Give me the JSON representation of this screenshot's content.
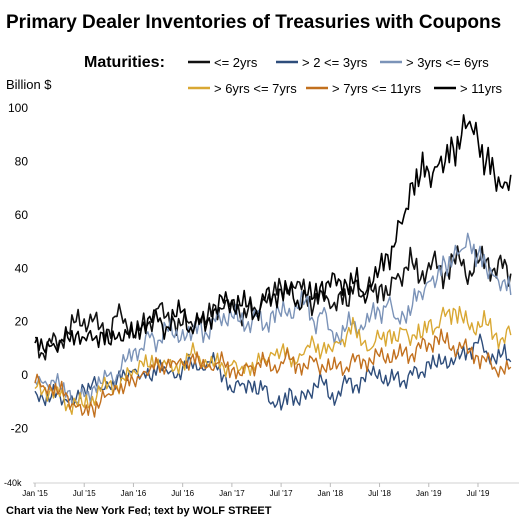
{
  "chart_data": {
    "type": "line",
    "title": "Primary Dealer Inventories of Treasuries with Coupons",
    "legend_title": "Maturities:",
    "ylabel": "Billion $",
    "ylim": [
      -40,
      100
    ],
    "yticks": [
      {
        "value": 100,
        "label": "100"
      },
      {
        "value": 80,
        "label": "80"
      },
      {
        "value": 60,
        "label": "60"
      },
      {
        "value": 40,
        "label": "40"
      },
      {
        "value": 20,
        "label": "20"
      },
      {
        "value": 0,
        "label": "0"
      },
      {
        "value": -20,
        "label": "-20"
      },
      {
        "value": -40,
        "label": "-40k"
      }
    ],
    "xlim": [
      "2015-01",
      "2019-12"
    ],
    "xticks": [
      {
        "date": "2015-01",
        "label": "Jan '15"
      },
      {
        "date": "2015-07",
        "label": "Jul '15"
      },
      {
        "date": "2016-01",
        "label": "Jan '16"
      },
      {
        "date": "2016-07",
        "label": "Jul '16"
      },
      {
        "date": "2017-01",
        "label": "Jan '17"
      },
      {
        "date": "2017-07",
        "label": "Jul '17"
      },
      {
        "date": "2018-01",
        "label": "Jan '18"
      },
      {
        "date": "2018-07",
        "label": "Jul '18"
      },
      {
        "date": "2019-01",
        "label": "Jan '19"
      },
      {
        "date": "2019-07",
        "label": "Jul '19"
      }
    ],
    "grid": false,
    "legend_placement": "top",
    "x": [
      "2015-01",
      "2015-02",
      "2015-03",
      "2015-04",
      "2015-05",
      "2015-06",
      "2015-07",
      "2015-08",
      "2015-09",
      "2015-10",
      "2015-11",
      "2015-12",
      "2016-01",
      "2016-02",
      "2016-03",
      "2016-04",
      "2016-05",
      "2016-06",
      "2016-07",
      "2016-08",
      "2016-09",
      "2016-10",
      "2016-11",
      "2016-12",
      "2017-01",
      "2017-02",
      "2017-03",
      "2017-04",
      "2017-05",
      "2017-06",
      "2017-07",
      "2017-08",
      "2017-09",
      "2017-10",
      "2017-11",
      "2017-12",
      "2018-01",
      "2018-02",
      "2018-03",
      "2018-04",
      "2018-05",
      "2018-06",
      "2018-07",
      "2018-08",
      "2018-09",
      "2018-10",
      "2018-11",
      "2018-12",
      "2019-01",
      "2019-02",
      "2019-03",
      "2019-04",
      "2019-05",
      "2019-06",
      "2019-07",
      "2019-08",
      "2019-09",
      "2019-10",
      "2019-11"
    ],
    "series": [
      {
        "name": "<= 2yrs",
        "color": "#111111",
        "values": [
          14,
          8,
          12,
          13,
          16,
          20,
          21,
          20,
          18,
          17,
          22,
          21,
          15,
          18,
          20,
          25,
          22,
          20,
          19,
          20,
          21,
          21,
          26,
          25,
          28,
          22,
          25,
          24,
          28,
          30,
          33,
          32,
          35,
          30,
          26,
          31,
          25,
          30,
          26,
          35,
          30,
          32,
          33,
          30,
          36,
          40,
          42,
          36,
          42,
          40,
          38,
          44,
          41,
          39,
          42,
          43,
          40,
          40,
          38
        ]
      },
      {
        "name": "> 2 <= 3yrs",
        "color": "#2e4d7b",
        "values": [
          -6,
          -9,
          -8,
          -7,
          -10,
          -9,
          -5,
          -3,
          -5,
          -4,
          -2,
          0,
          2,
          0,
          -1,
          4,
          2,
          -1,
          3,
          5,
          2,
          5,
          4,
          0,
          -6,
          -4,
          -2,
          -7,
          -4,
          -10,
          -13,
          -5,
          -10,
          -9,
          -3,
          -2,
          -9,
          -6,
          -3,
          -4,
          -1,
          0,
          2,
          -4,
          0,
          -2,
          0,
          1,
          5,
          3,
          7,
          4,
          8,
          10,
          12,
          9,
          6,
          8,
          5
        ]
      },
      {
        "name": "> 3yrs <= 6yrs",
        "color": "#7b93b8",
        "values": [
          -2,
          -3,
          -2,
          -4,
          -6,
          -10,
          -8,
          -5,
          -3,
          0,
          0,
          5,
          9,
          10,
          14,
          13,
          18,
          14,
          17,
          13,
          20,
          15,
          20,
          23,
          22,
          20,
          20,
          22,
          18,
          24,
          22,
          25,
          25,
          28,
          20,
          23,
          17,
          14,
          18,
          20,
          17,
          23,
          24,
          27,
          21,
          22,
          26,
          31,
          35,
          36,
          42,
          44,
          47,
          50,
          45,
          40,
          37,
          35,
          30
        ]
      },
      {
        "name": "> 6yrs <= 7yrs",
        "color": "#d9a833",
        "values": [
          -5,
          -6,
          -5,
          -8,
          -11,
          -10,
          -12,
          -8,
          -6,
          -3,
          -4,
          -2,
          2,
          5,
          3,
          6,
          4,
          2,
          5,
          8,
          7,
          4,
          5,
          3,
          4,
          2,
          3,
          4,
          6,
          8,
          9,
          7,
          5,
          10,
          12,
          9,
          10,
          12,
          15,
          18,
          12,
          10,
          14,
          16,
          13,
          17,
          15,
          14,
          20,
          18,
          22,
          25,
          22,
          17,
          20,
          19,
          15,
          14,
          15
        ]
      },
      {
        "name": "> 7yrs <= 11yrs",
        "color": "#c2701e",
        "values": [
          -3,
          -4,
          -5,
          -6,
          -8,
          -12,
          -14,
          -12,
          -10,
          -7,
          -5,
          -4,
          -2,
          0,
          2,
          4,
          3,
          5,
          4,
          6,
          5,
          3,
          4,
          5,
          2,
          0,
          3,
          4,
          5,
          2,
          5,
          6,
          4,
          3,
          5,
          4,
          2,
          4,
          3,
          5,
          6,
          5,
          7,
          8,
          6,
          9,
          8,
          10,
          12,
          14,
          12,
          11,
          10,
          9,
          7,
          5,
          3,
          2,
          3
        ]
      },
      {
        "name": "> 11yrs",
        "color": "#000000",
        "values": [
          12,
          10,
          11,
          12,
          14,
          15,
          14,
          13,
          16,
          12,
          14,
          17,
          14,
          18,
          22,
          20,
          18,
          22,
          24,
          18,
          19,
          20,
          25,
          27,
          28,
          26,
          26,
          24,
          28,
          30,
          32,
          30,
          28,
          30,
          29,
          35,
          33,
          36,
          34,
          35,
          31,
          33,
          40,
          45,
          50,
          60,
          72,
          75,
          76,
          78,
          80,
          85,
          90,
          95,
          88,
          80,
          75,
          70,
          75
        ]
      }
    ],
    "source_note": "Chart via  the New York Fed; text by WOLF STREET"
  }
}
